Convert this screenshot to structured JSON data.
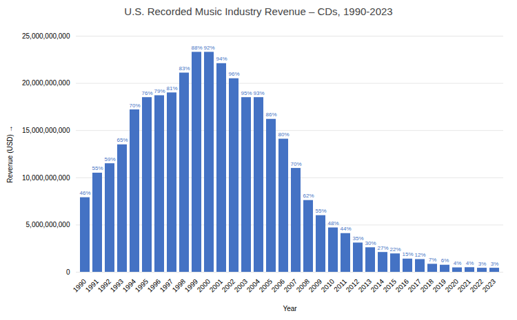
{
  "chart_data": {
    "type": "bar",
    "title": "U.S. Recorded Music Industry Revenue – CDs, 1990-2023",
    "xlabel": "Year",
    "ylabel": "Revenue (USD)",
    "categories": [
      "1990",
      "1991",
      "1992",
      "1993",
      "1994",
      "1995",
      "1996",
      "1997",
      "1998",
      "1999",
      "2000",
      "2001",
      "2002",
      "2003",
      "2004",
      "2005",
      "2006",
      "2007",
      "2008",
      "2009",
      "2010",
      "2011",
      "2012",
      "2013",
      "2014",
      "2015",
      "2016",
      "2017",
      "2018",
      "2019",
      "2020",
      "2021",
      "2022",
      "2023"
    ],
    "values": [
      7900000000,
      10500000000,
      11500000000,
      13500000000,
      17200000000,
      18500000000,
      18700000000,
      19000000000,
      21100000000,
      23300000000,
      23300000000,
      22100000000,
      20500000000,
      18500000000,
      18500000000,
      16200000000,
      14100000000,
      11000000000,
      7600000000,
      6000000000,
      4700000000,
      4100000000,
      3100000000,
      2600000000,
      2100000000,
      1950000000,
      1400000000,
      1350000000,
      850000000,
      750000000,
      470000000,
      490000000,
      430000000,
      430000000
    ],
    "annotations": [
      "46%",
      "55%",
      "59%",
      "65%",
      "70%",
      "76%",
      "79%",
      "81%",
      "83%",
      "88%",
      "92%",
      "94%",
      "96%",
      "95%",
      "93%",
      "86%",
      "80%",
      "70%",
      "62%",
      "55%",
      "48%",
      "44%",
      "35%",
      "30%",
      "27%",
      "22%",
      "15%",
      "12%",
      "7%",
      "6%",
      "4%",
      "4%",
      "3%",
      "3%"
    ],
    "color": "#4472C4",
    "ylim": [
      0,
      25000000000
    ],
    "yticks": [
      0,
      {
        "value": 5000000000,
        "label": "5,000,000,000"
      },
      {
        "value": 10000000000,
        "label": "10,000,000,000"
      },
      {
        "value": 15000000000,
        "label": "15,000,000,000"
      },
      {
        "value": 20000000000,
        "label": "20,000,000,000"
      },
      {
        "value": 25000000000,
        "label": "25,000,000,000"
      }
    ],
    "grid": true
  }
}
